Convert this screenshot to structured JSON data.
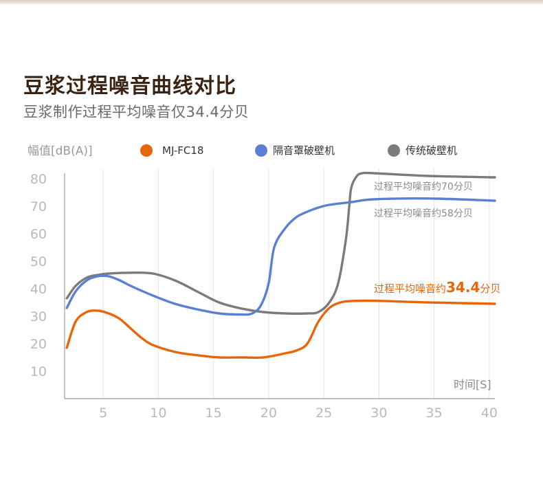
{
  "title": "豆浆过程噪音曲线对比",
  "subtitle": "豆浆制作过程平均噪音仅34.4分贝",
  "chart_data": {
    "type": "line",
    "ylabel": "幅值[dB(A)]",
    "xlabel": "时间[S]",
    "xlim": [
      2,
      42
    ],
    "ylim": [
      0,
      82
    ],
    "x_ticks": [
      5,
      10,
      15,
      20,
      25,
      30,
      35,
      40
    ],
    "y_ticks": [
      10,
      20,
      30,
      40,
      50,
      60,
      70,
      80
    ],
    "x_tick_labels": [
      "5",
      "10",
      "15",
      "20",
      "25",
      "30",
      "35",
      "40"
    ],
    "y_tick_labels": [
      "10",
      "20",
      "30",
      "40",
      "50",
      "60",
      "70",
      "80"
    ],
    "grid": "vertical",
    "legend_position": "top",
    "series": [
      {
        "name": "MJ-FC18",
        "color": "#e8650a",
        "x": [
          2.2,
          3,
          4,
          5,
          6,
          7,
          8,
          9,
          10,
          12,
          14,
          16,
          18,
          20,
          22,
          23,
          24,
          25,
          26,
          27,
          28,
          30,
          35,
          41
        ],
        "y": [
          18.5,
          28,
          31.5,
          32,
          31,
          29,
          25.5,
          22,
          19.5,
          17,
          15.8,
          15,
          15,
          15,
          16.5,
          17.5,
          20,
          28,
          33,
          35,
          35.5,
          35.6,
          35,
          34.5
        ]
      },
      {
        "name": "隔音罩破壁机",
        "color": "#5b7fd4",
        "x": [
          2.2,
          3,
          4,
          5,
          6,
          7,
          8,
          10,
          12,
          14,
          16,
          18,
          19,
          19.8,
          20.5,
          21,
          22,
          23,
          24,
          25,
          26,
          28,
          30,
          35,
          41
        ],
        "y": [
          33,
          39,
          43,
          44.5,
          44.5,
          43,
          41,
          37.5,
          34.5,
          32.5,
          31,
          30.6,
          31,
          34,
          42,
          55,
          62,
          66,
          68,
          69.5,
          70.5,
          71.5,
          72.5,
          72.8,
          72
        ]
      },
      {
        "name": "传统破壁机",
        "color": "#7b7b7b",
        "x": [
          2.2,
          3,
          4,
          5,
          6,
          8,
          10,
          12,
          14,
          16,
          18,
          20,
          22,
          24,
          25,
          26,
          26.8,
          27.5,
          27.8,
          28,
          28.5,
          29,
          30,
          35,
          41
        ],
        "y": [
          36.5,
          41,
          44,
          45,
          45.5,
          45.8,
          45.5,
          43,
          39,
          35,
          32.8,
          31.5,
          31,
          31,
          31.5,
          35,
          42,
          58,
          70,
          77,
          81,
          82,
          82,
          81,
          80.5
        ]
      }
    ],
    "annotations": [
      {
        "text": "过程平均噪音约70分贝",
        "series": "传统破壁机"
      },
      {
        "text": "过程平均噪音约58分贝",
        "series": "隔音罩破壁机"
      },
      {
        "prefix": "过程平均噪音约",
        "value": "34.4",
        "suffix": "分贝",
        "series": "MJ-FC18"
      }
    ]
  }
}
